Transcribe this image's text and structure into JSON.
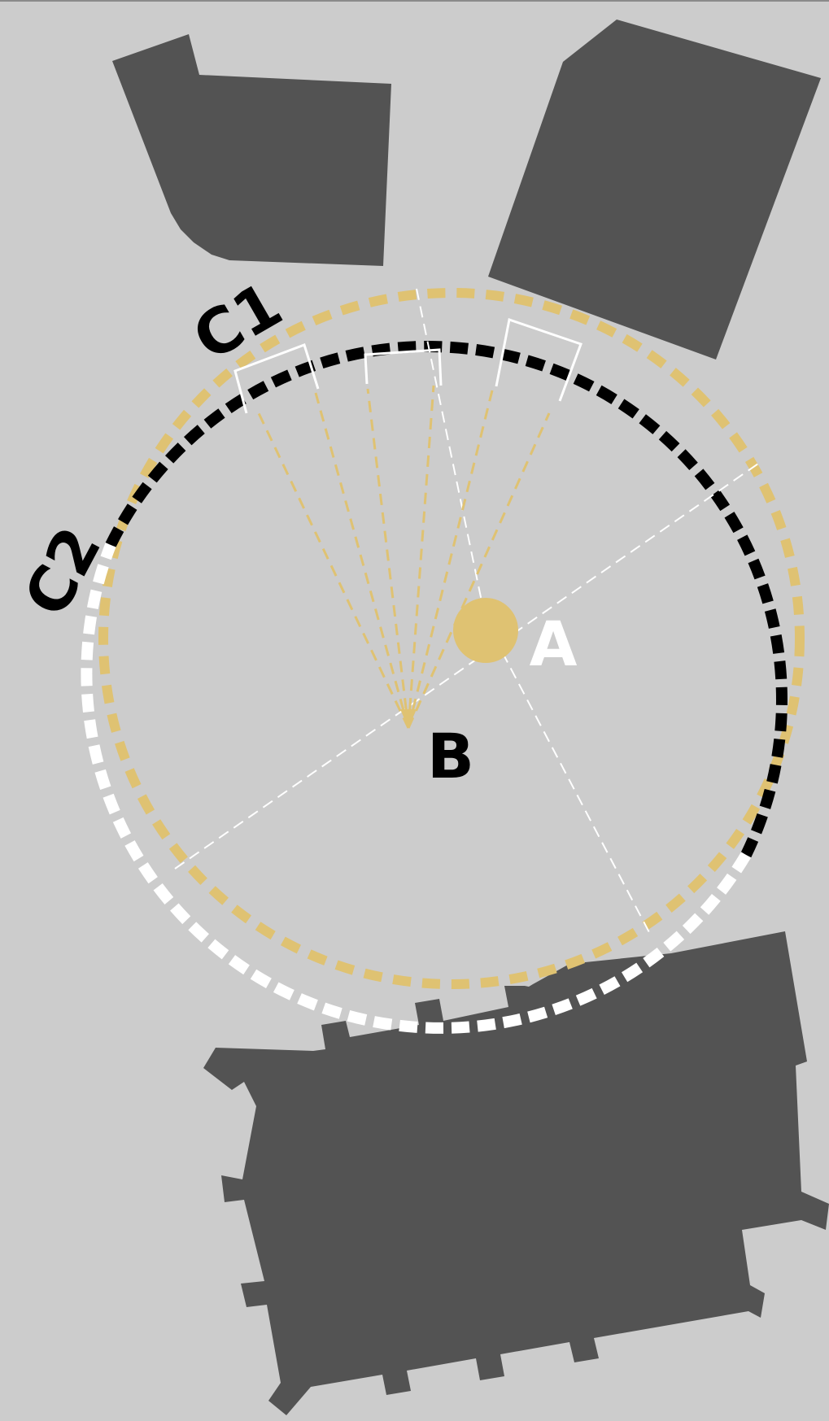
{
  "labels": {
    "point_a": "A",
    "point_b": "B",
    "circle_1": "C1",
    "circle_2": "C2"
  },
  "colors": {
    "background": "#cccccc",
    "building": "#535353",
    "gold": "#dfc272",
    "black": "#000000",
    "white": "#ffffff"
  }
}
